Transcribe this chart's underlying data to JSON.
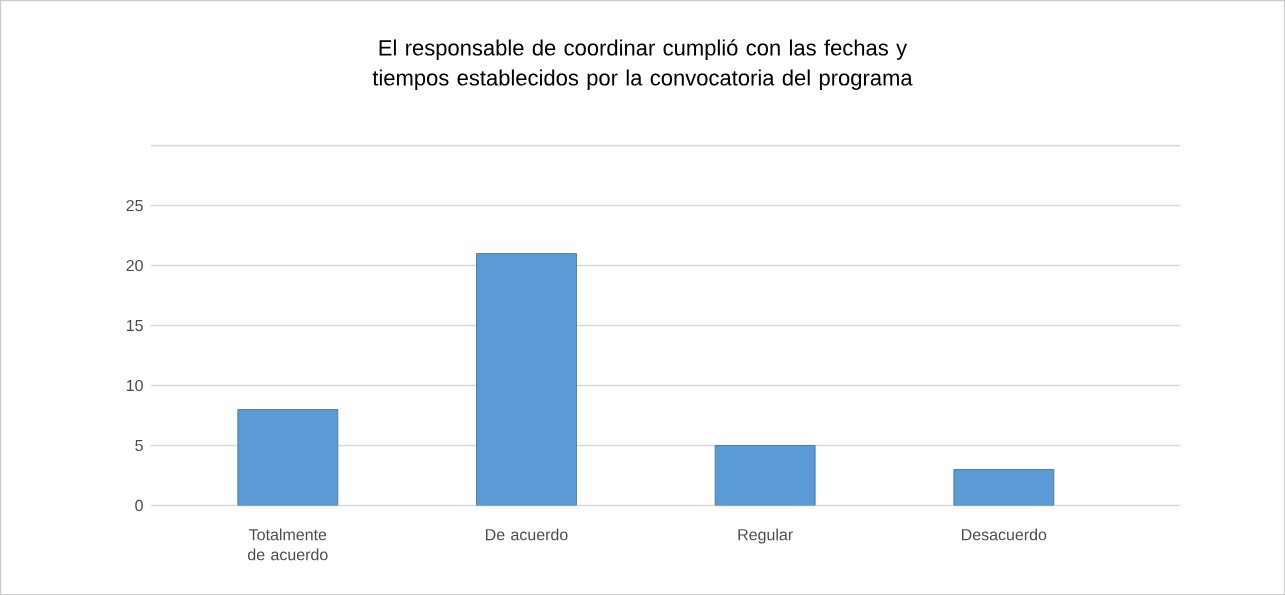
{
  "chart_data": {
    "type": "bar",
    "title": "El responsable de coordinar cumplió con las fechas y tiempos establecidos por la convocatoria del programa",
    "categories": [
      "Totalmente de acuerdo",
      "De acuerdo",
      "Regular",
      "Desacuerdo"
    ],
    "values": [
      8,
      21,
      5,
      3
    ],
    "color": "#5b9bd5",
    "ylim": [
      0,
      30
    ],
    "yticks": [
      0,
      5,
      10,
      15,
      20,
      25,
      {
        "value": 30,
        "label": null
      }
    ],
    "grid": "y"
  }
}
